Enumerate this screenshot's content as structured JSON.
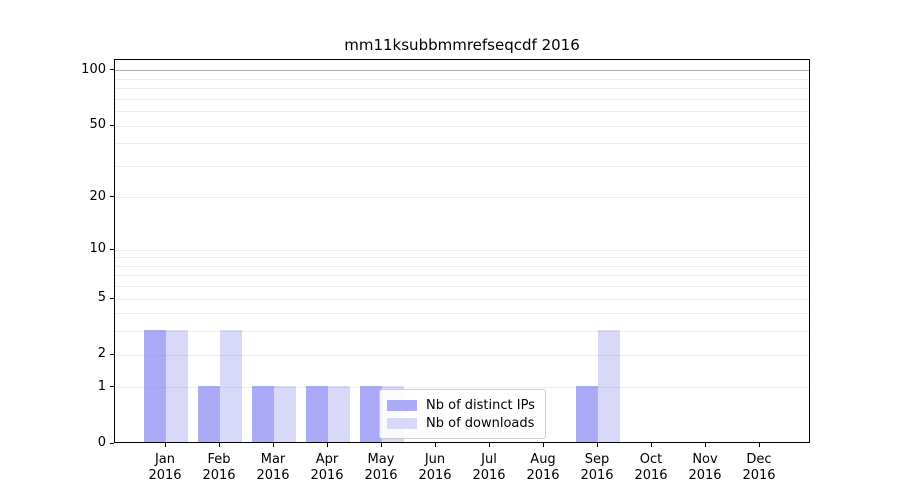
{
  "figure": {
    "background": "#ffffff"
  },
  "chart_data": {
    "type": "bar",
    "title": "mm11ksubbmmrefseqcdf 2016",
    "categories": [
      "Jan 2016",
      "Feb 2016",
      "Mar 2016",
      "Apr 2016",
      "May 2016",
      "Jun 2016",
      "Jul 2016",
      "Aug 2016",
      "Sep 2016",
      "Oct 2016",
      "Nov 2016",
      "Dec 2016"
    ],
    "series": [
      {
        "name": "Nb of distinct IPs",
        "color": "#aaaaf6",
        "values": [
          3,
          1,
          1,
          1,
          1,
          0,
          0,
          0,
          1,
          0,
          0,
          0
        ]
      },
      {
        "name": "Nb of downloads",
        "color": "#d8d8f8",
        "values": [
          3,
          3,
          1,
          1,
          1,
          0,
          0,
          0,
          3,
          0,
          0,
          0
        ]
      }
    ],
    "xlabel": "",
    "ylabel": "",
    "yscale": "log1p",
    "yticks": [
      0,
      1,
      2,
      5,
      10,
      20,
      50,
      100
    ],
    "minor_gridlines": [
      3,
      4,
      6,
      7,
      8,
      9,
      30,
      40,
      60,
      70,
      80,
      90
    ],
    "ylim": [
      0,
      115
    ],
    "grid": true,
    "legend_position": "lower-center-inside"
  }
}
